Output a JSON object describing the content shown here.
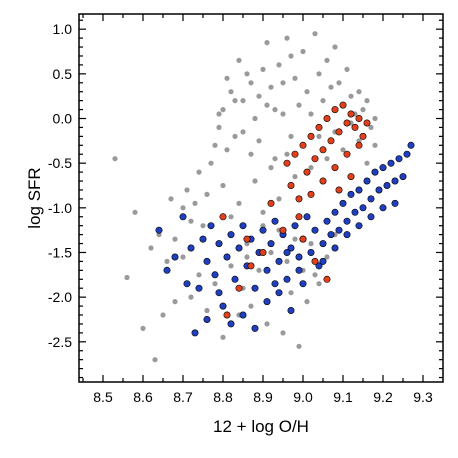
{
  "chart_data": {
    "type": "scatter",
    "xlabel": "12 + log O/H",
    "ylabel": "log SFR",
    "xlim": [
      8.44,
      9.35
    ],
    "ylim": [
      -2.95,
      1.17
    ],
    "xticks": [
      "8.5",
      "8.6",
      "8.7",
      "8.8",
      "8.9",
      "9.0",
      "9.1",
      "9.2",
      "9.3"
    ],
    "yticks": [
      "1.0",
      "0.5",
      "0.0",
      "-0.5",
      "-1.0",
      "-1.5",
      "-2.0",
      "-2.5"
    ],
    "grid": false,
    "legend": "none",
    "series": [
      {
        "color": "#9a9a9a",
        "marker": "filled-circle",
        "points": [
          [
            8.53,
            -0.45
          ],
          [
            8.56,
            -1.78
          ],
          [
            8.58,
            -1.05
          ],
          [
            8.6,
            -2.35
          ],
          [
            8.62,
            -1.45
          ],
          [
            8.63,
            -2.7
          ],
          [
            8.64,
            -1.3
          ],
          [
            8.65,
            -2.2
          ],
          [
            8.66,
            -1.6
          ],
          [
            8.67,
            -0.9
          ],
          [
            8.68,
            -2.05
          ],
          [
            8.7,
            -1.0
          ],
          [
            8.71,
            -0.8
          ],
          [
            8.72,
            -1.15
          ],
          [
            8.73,
            -0.95
          ],
          [
            8.74,
            -0.6
          ],
          [
            8.75,
            -1.2
          ],
          [
            8.76,
            -0.85
          ],
          [
            8.77,
            -0.5
          ],
          [
            8.78,
            -0.3
          ],
          [
            8.79,
            -0.1
          ],
          [
            8.8,
            0.1
          ],
          [
            8.81,
            0.45
          ],
          [
            8.82,
            0.3
          ],
          [
            8.83,
            -0.2
          ],
          [
            8.84,
            0.65
          ],
          [
            8.85,
            0.2
          ],
          [
            8.86,
            0.5
          ],
          [
            8.87,
            -0.4
          ],
          [
            8.88,
            0.0
          ],
          [
            8.89,
            0.25
          ],
          [
            8.9,
            0.55
          ],
          [
            8.91,
            0.85
          ],
          [
            8.92,
            0.35
          ],
          [
            8.93,
            0.1
          ],
          [
            8.94,
            0.6
          ],
          [
            8.95,
            0.4
          ],
          [
            8.96,
            0.9
          ],
          [
            8.97,
            0.7
          ],
          [
            8.98,
            0.45
          ],
          [
            8.99,
            0.15
          ],
          [
            9.0,
            0.75
          ],
          [
            9.01,
            0.3
          ],
          [
            9.02,
            0.05
          ],
          [
            9.03,
            0.95
          ],
          [
            9.04,
            0.5
          ],
          [
            9.05,
            0.2
          ],
          [
            9.06,
            0.65
          ],
          [
            9.07,
            0.35
          ],
          [
            9.08,
            0.8
          ],
          [
            9.09,
            0.4
          ],
          [
            9.1,
            0.15
          ],
          [
            9.11,
            0.55
          ],
          [
            9.12,
            0.25
          ],
          [
            9.13,
            0.05
          ],
          [
            9.14,
            0.3
          ],
          [
            9.15,
            0.1
          ],
          [
            9.16,
            0.2
          ],
          [
            9.17,
            -0.1
          ],
          [
            9.18,
            0.0
          ],
          [
            8.8,
            -0.75
          ],
          [
            8.82,
            -1.1
          ],
          [
            8.84,
            -0.95
          ],
          [
            8.86,
            -1.4
          ],
          [
            8.88,
            -0.7
          ],
          [
            8.9,
            -1.05
          ],
          [
            8.92,
            -0.55
          ],
          [
            8.94,
            -0.9
          ],
          [
            8.96,
            -0.4
          ],
          [
            8.98,
            -0.65
          ],
          [
            9.0,
            -0.3
          ],
          [
            9.02,
            -0.55
          ],
          [
            9.04,
            -0.2
          ],
          [
            9.06,
            -0.45
          ],
          [
            9.08,
            -0.15
          ],
          [
            9.1,
            -0.35
          ],
          [
            9.12,
            -0.05
          ],
          [
            9.14,
            -0.25
          ],
          [
            9.16,
            -0.5
          ],
          [
            9.18,
            -0.3
          ],
          [
            8.85,
            -1.9
          ],
          [
            8.87,
            -2.1
          ],
          [
            8.89,
            -1.7
          ],
          [
            8.91,
            -2.3
          ],
          [
            8.93,
            -1.85
          ],
          [
            8.95,
            -2.4
          ],
          [
            8.97,
            -1.95
          ],
          [
            8.99,
            -2.55
          ],
          [
            9.01,
            -2.05
          ],
          [
            9.03,
            -1.75
          ],
          [
            8.8,
            -2.45
          ],
          [
            8.82,
            -1.65
          ],
          [
            8.84,
            -2.2
          ],
          [
            8.86,
            -1.55
          ],
          [
            8.78,
            -1.85
          ],
          [
            8.76,
            -2.15
          ],
          [
            8.74,
            -1.75
          ],
          [
            8.72,
            -2.0
          ],
          [
            8.7,
            -1.55
          ],
          [
            8.68,
            -1.35
          ],
          [
            8.9,
            -1.2
          ],
          [
            8.92,
            -1.5
          ],
          [
            8.94,
            -1.25
          ],
          [
            8.96,
            -1.6
          ],
          [
            8.98,
            -1.35
          ],
          [
            9.0,
            -1.7
          ],
          [
            9.02,
            -1.4
          ],
          [
            9.04,
            -1.85
          ],
          [
            9.06,
            -1.55
          ],
          [
            9.08,
            -1.3
          ],
          [
            8.79,
            0.05
          ],
          [
            8.81,
            -0.35
          ],
          [
            8.83,
            0.2
          ],
          [
            8.85,
            -0.15
          ],
          [
            8.87,
            0.4
          ],
          [
            8.89,
            -0.25
          ],
          [
            8.91,
            0.15
          ],
          [
            8.93,
            -0.45
          ],
          [
            8.95,
            0.05
          ],
          [
            8.97,
            -0.2
          ]
        ]
      },
      {
        "color": "#1f3fbf",
        "marker": "filled-circle",
        "points": [
          [
            8.64,
            -1.25
          ],
          [
            8.66,
            -1.7
          ],
          [
            8.68,
            -1.55
          ],
          [
            8.7,
            -1.1
          ],
          [
            8.72,
            -1.45
          ],
          [
            8.73,
            -2.4
          ],
          [
            8.74,
            -1.9
          ],
          [
            8.75,
            -1.35
          ],
          [
            8.76,
            -1.6
          ],
          [
            8.77,
            -1.2
          ],
          [
            8.78,
            -1.75
          ],
          [
            8.79,
            -1.4
          ],
          [
            8.8,
            -2.1
          ],
          [
            8.81,
            -1.55
          ],
          [
            8.82,
            -1.3
          ],
          [
            8.83,
            -1.8
          ],
          [
            8.84,
            -1.45
          ],
          [
            8.85,
            -1.2
          ],
          [
            8.86,
            -1.65
          ],
          [
            8.87,
            -1.35
          ],
          [
            8.88,
            -1.9
          ],
          [
            8.89,
            -1.5
          ],
          [
            8.9,
            -1.25
          ],
          [
            8.91,
            -1.7
          ],
          [
            8.92,
            -1.4
          ],
          [
            8.93,
            -1.15
          ],
          [
            8.94,
            -1.6
          ],
          [
            8.95,
            -1.3
          ],
          [
            8.96,
            -1.8
          ],
          [
            8.97,
            -1.45
          ],
          [
            8.98,
            -1.2
          ],
          [
            8.99,
            -1.55
          ],
          [
            9.0,
            -1.35
          ],
          [
            9.01,
            -1.1
          ],
          [
            9.02,
            -1.5
          ],
          [
            9.03,
            -1.25
          ],
          [
            9.04,
            -1.65
          ],
          [
            9.05,
            -1.4
          ],
          [
            9.06,
            -1.15
          ],
          [
            9.07,
            -1.3
          ],
          [
            9.08,
            -1.05
          ],
          [
            9.09,
            -1.25
          ],
          [
            9.1,
            -0.95
          ],
          [
            9.11,
            -1.15
          ],
          [
            9.12,
            -0.85
          ],
          [
            9.13,
            -1.05
          ],
          [
            9.14,
            -0.8
          ],
          [
            9.15,
            -1.0
          ],
          [
            9.16,
            -0.7
          ],
          [
            9.17,
            -0.9
          ],
          [
            9.18,
            -0.6
          ],
          [
            9.19,
            -0.8
          ],
          [
            9.2,
            -0.55
          ],
          [
            9.21,
            -0.75
          ],
          [
            9.22,
            -0.5
          ],
          [
            9.23,
            -0.7
          ],
          [
            9.24,
            -0.45
          ],
          [
            9.25,
            -0.65
          ],
          [
            9.26,
            -0.4
          ],
          [
            9.27,
            -0.3
          ],
          [
            8.85,
            -2.2
          ],
          [
            8.88,
            -2.35
          ],
          [
            8.91,
            -2.05
          ],
          [
            8.94,
            -1.95
          ],
          [
            8.97,
            -2.15
          ],
          [
            9.0,
            -1.85
          ],
          [
            8.82,
            -2.3
          ],
          [
            8.79,
            -1.95
          ],
          [
            8.76,
            -2.25
          ],
          [
            8.71,
            -1.85
          ],
          [
            9.05,
            -1.6
          ],
          [
            9.08,
            -1.45
          ],
          [
            9.11,
            -1.3
          ],
          [
            9.14,
            -1.2
          ],
          [
            9.17,
            -1.1
          ],
          [
            9.2,
            -1.0
          ],
          [
            9.23,
            -0.95
          ],
          [
            8.99,
            -1.7
          ],
          [
            8.96,
            -1.5
          ],
          [
            8.93,
            -1.85
          ]
        ]
      },
      {
        "color": "#e0401c",
        "marker": "filled-circle",
        "points": [
          [
            8.8,
            -1.1
          ],
          [
            8.86,
            -1.35
          ],
          [
            8.92,
            -0.95
          ],
          [
            8.95,
            -1.25
          ],
          [
            8.96,
            -0.5
          ],
          [
            8.97,
            -0.75
          ],
          [
            8.98,
            -0.4
          ],
          [
            8.99,
            -0.9
          ],
          [
            9.0,
            -0.3
          ],
          [
            9.01,
            -0.6
          ],
          [
            9.02,
            -0.2
          ],
          [
            9.03,
            -0.45
          ],
          [
            9.04,
            -0.1
          ],
          [
            9.05,
            -0.35
          ],
          [
            9.06,
            0.0
          ],
          [
            9.07,
            -0.25
          ],
          [
            9.08,
            0.1
          ],
          [
            9.09,
            -0.15
          ],
          [
            9.1,
            0.15
          ],
          [
            9.11,
            -0.05
          ],
          [
            9.12,
            0.05
          ],
          [
            9.13,
            -0.1
          ],
          [
            9.14,
            0.0
          ],
          [
            9.15,
            -0.2
          ],
          [
            9.16,
            -0.05
          ],
          [
            9.05,
            -0.7
          ],
          [
            9.08,
            -0.55
          ],
          [
            9.11,
            -0.4
          ],
          [
            9.02,
            -0.85
          ],
          [
            8.99,
            -1.1
          ],
          [
            9.0,
            -1.35
          ],
          [
            9.03,
            -1.6
          ],
          [
            9.06,
            -1.8
          ],
          [
            8.9,
            -1.5
          ],
          [
            8.87,
            -1.65
          ],
          [
            8.84,
            -1.9
          ],
          [
            8.81,
            -2.2
          ],
          [
            9.09,
            -0.8
          ],
          [
            9.12,
            -0.65
          ],
          [
            9.14,
            -0.3
          ]
        ]
      }
    ]
  }
}
